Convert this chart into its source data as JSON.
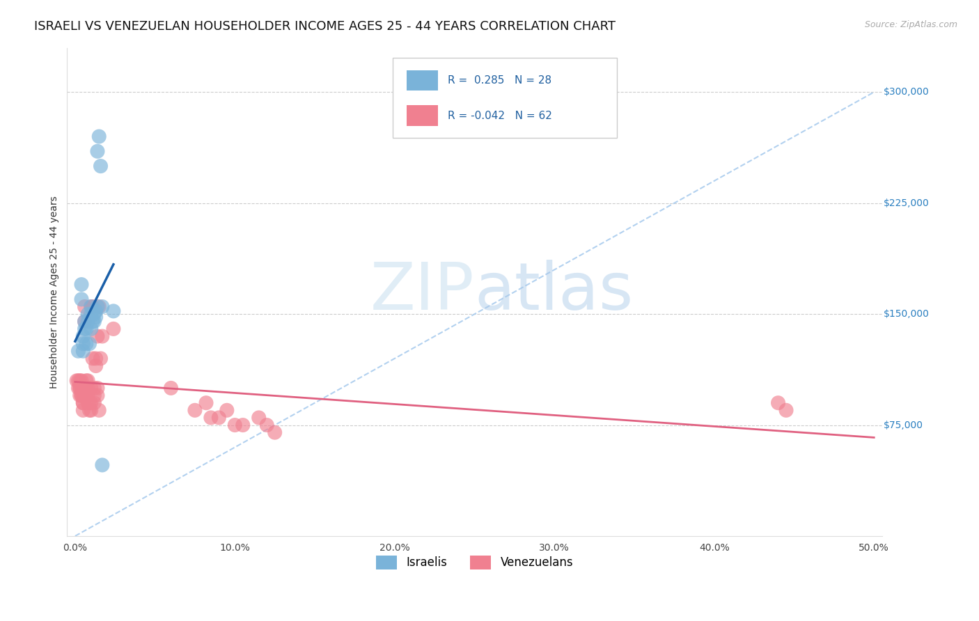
{
  "title": "ISRAELI VS VENEZUELAN HOUSEHOLDER INCOME AGES 25 - 44 YEARS CORRELATION CHART",
  "source": "Source: ZipAtlas.com",
  "ylabel": "Householder Income Ages 25 - 44 years",
  "xlabel_ticks": [
    "0.0%",
    "10.0%",
    "20.0%",
    "30.0%",
    "40.0%",
    "50.0%"
  ],
  "xlabel_vals": [
    0.0,
    0.1,
    0.2,
    0.3,
    0.4,
    0.5
  ],
  "ytick_labels": [
    "$75,000",
    "$150,000",
    "$225,000",
    "$300,000"
  ],
  "ytick_vals": [
    75000,
    150000,
    225000,
    300000
  ],
  "bg_color": "#ffffff",
  "grid_color": "#cccccc",
  "israeli_color": "#7ab3d9",
  "venezuelan_color": "#f08090",
  "israeli_line_color": "#1a5fa8",
  "venezuelan_line_color": "#e06080",
  "diagonal_color": "#aaccee",
  "israelis_x": [
    0.002,
    0.004,
    0.004,
    0.005,
    0.005,
    0.005,
    0.006,
    0.006,
    0.007,
    0.007,
    0.008,
    0.008,
    0.009,
    0.01,
    0.01,
    0.01,
    0.011,
    0.012,
    0.012,
    0.013,
    0.013,
    0.014,
    0.014,
    0.015,
    0.016,
    0.017,
    0.017,
    0.024
  ],
  "israelis_y": [
    125000,
    160000,
    170000,
    135000,
    130000,
    125000,
    140000,
    145000,
    130000,
    140000,
    145000,
    150000,
    130000,
    140000,
    150000,
    155000,
    145000,
    145000,
    150000,
    148000,
    152000,
    155000,
    260000,
    270000,
    250000,
    155000,
    48000,
    152000
  ],
  "venezuelans_x": [
    0.001,
    0.002,
    0.002,
    0.003,
    0.003,
    0.003,
    0.003,
    0.004,
    0.004,
    0.004,
    0.004,
    0.005,
    0.005,
    0.005,
    0.005,
    0.005,
    0.005,
    0.006,
    0.006,
    0.006,
    0.006,
    0.007,
    0.007,
    0.007,
    0.008,
    0.008,
    0.008,
    0.008,
    0.009,
    0.009,
    0.01,
    0.01,
    0.01,
    0.01,
    0.011,
    0.011,
    0.012,
    0.012,
    0.012,
    0.013,
    0.013,
    0.014,
    0.014,
    0.014,
    0.015,
    0.015,
    0.016,
    0.017,
    0.024,
    0.06,
    0.075,
    0.082,
    0.085,
    0.09,
    0.095,
    0.1,
    0.105,
    0.115,
    0.12,
    0.125,
    0.44,
    0.445
  ],
  "venezuelans_y": [
    105000,
    100000,
    105000,
    100000,
    105000,
    95000,
    100000,
    95000,
    100000,
    105000,
    95000,
    100000,
    95000,
    100000,
    90000,
    85000,
    90000,
    155000,
    145000,
    100000,
    95000,
    100000,
    105000,
    95000,
    100000,
    105000,
    95000,
    90000,
    90000,
    85000,
    100000,
    90000,
    85000,
    155000,
    155000,
    120000,
    100000,
    95000,
    90000,
    120000,
    115000,
    100000,
    95000,
    135000,
    85000,
    155000,
    120000,
    135000,
    140000,
    100000,
    85000,
    90000,
    80000,
    80000,
    85000,
    75000,
    75000,
    80000,
    75000,
    70000,
    90000,
    85000
  ],
  "xlim": [
    -0.005,
    0.505
  ],
  "ylim": [
    0,
    330000
  ],
  "title_fontsize": 13,
  "axis_fontsize": 10,
  "tick_fontsize": 10,
  "legend_fontsize": 11,
  "R_israeli": 0.285,
  "N_israeli": 28,
  "R_venezuelan": -0.042,
  "N_venezuelan": 62
}
